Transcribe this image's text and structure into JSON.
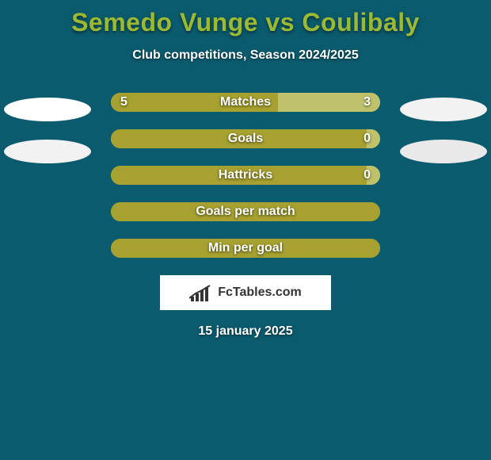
{
  "background_color": "#0b5b6e",
  "title": {
    "text": "Semedo Vunge vs Coulibaly",
    "color": "#9bb933",
    "fontsize": 32
  },
  "subtitle": {
    "text": "Club competitions, Season 2024/2025",
    "color": "#ffffff",
    "fontsize": 16
  },
  "stats": {
    "track_width": 340,
    "track_height": 24,
    "text_color": "#ffffff",
    "rows": [
      {
        "label": "Matches",
        "left_value": "5",
        "right_value": "3",
        "left_pct": 62,
        "right_pct": 38,
        "left_color": "#a6a130",
        "right_color": "#bfc26a",
        "track_bg": "#a6a130",
        "show_left_value": true,
        "show_right_value": true
      },
      {
        "label": "Goals",
        "left_value": "",
        "right_value": "0",
        "left_pct": 95,
        "right_pct": 5,
        "left_color": "#a6a130",
        "right_color": "#bfc26a",
        "track_bg": "#a6a130",
        "show_left_value": false,
        "show_right_value": true
      },
      {
        "label": "Hattricks",
        "left_value": "",
        "right_value": "0",
        "left_pct": 95,
        "right_pct": 5,
        "left_color": "#a6a130",
        "right_color": "#bfc26a",
        "track_bg": "#a6a130",
        "show_left_value": false,
        "show_right_value": true
      },
      {
        "label": "Goals per match",
        "left_value": "",
        "right_value": "",
        "left_pct": 100,
        "right_pct": 0,
        "left_color": "#a6a130",
        "right_color": "#bfc26a",
        "track_bg": "#a6a130",
        "show_left_value": false,
        "show_right_value": false
      },
      {
        "label": "Min per goal",
        "left_value": "",
        "right_value": "",
        "left_pct": 100,
        "right_pct": 0,
        "left_color": "#a6a130",
        "right_color": "#bfc26a",
        "track_bg": "#a6a130",
        "show_left_value": false,
        "show_right_value": false
      }
    ]
  },
  "logo": {
    "box_bg": "#ffffff",
    "text": "FcTables.com",
    "text_color": "#333333"
  },
  "date": {
    "text": "15 january 2025",
    "color": "#ffffff"
  },
  "side_ovals": {
    "left1_color": "#ffffff",
    "right1_color": "#f2f2f2",
    "left2_color": "#f2f2f2",
    "right2_color": "#e9e9e9"
  }
}
